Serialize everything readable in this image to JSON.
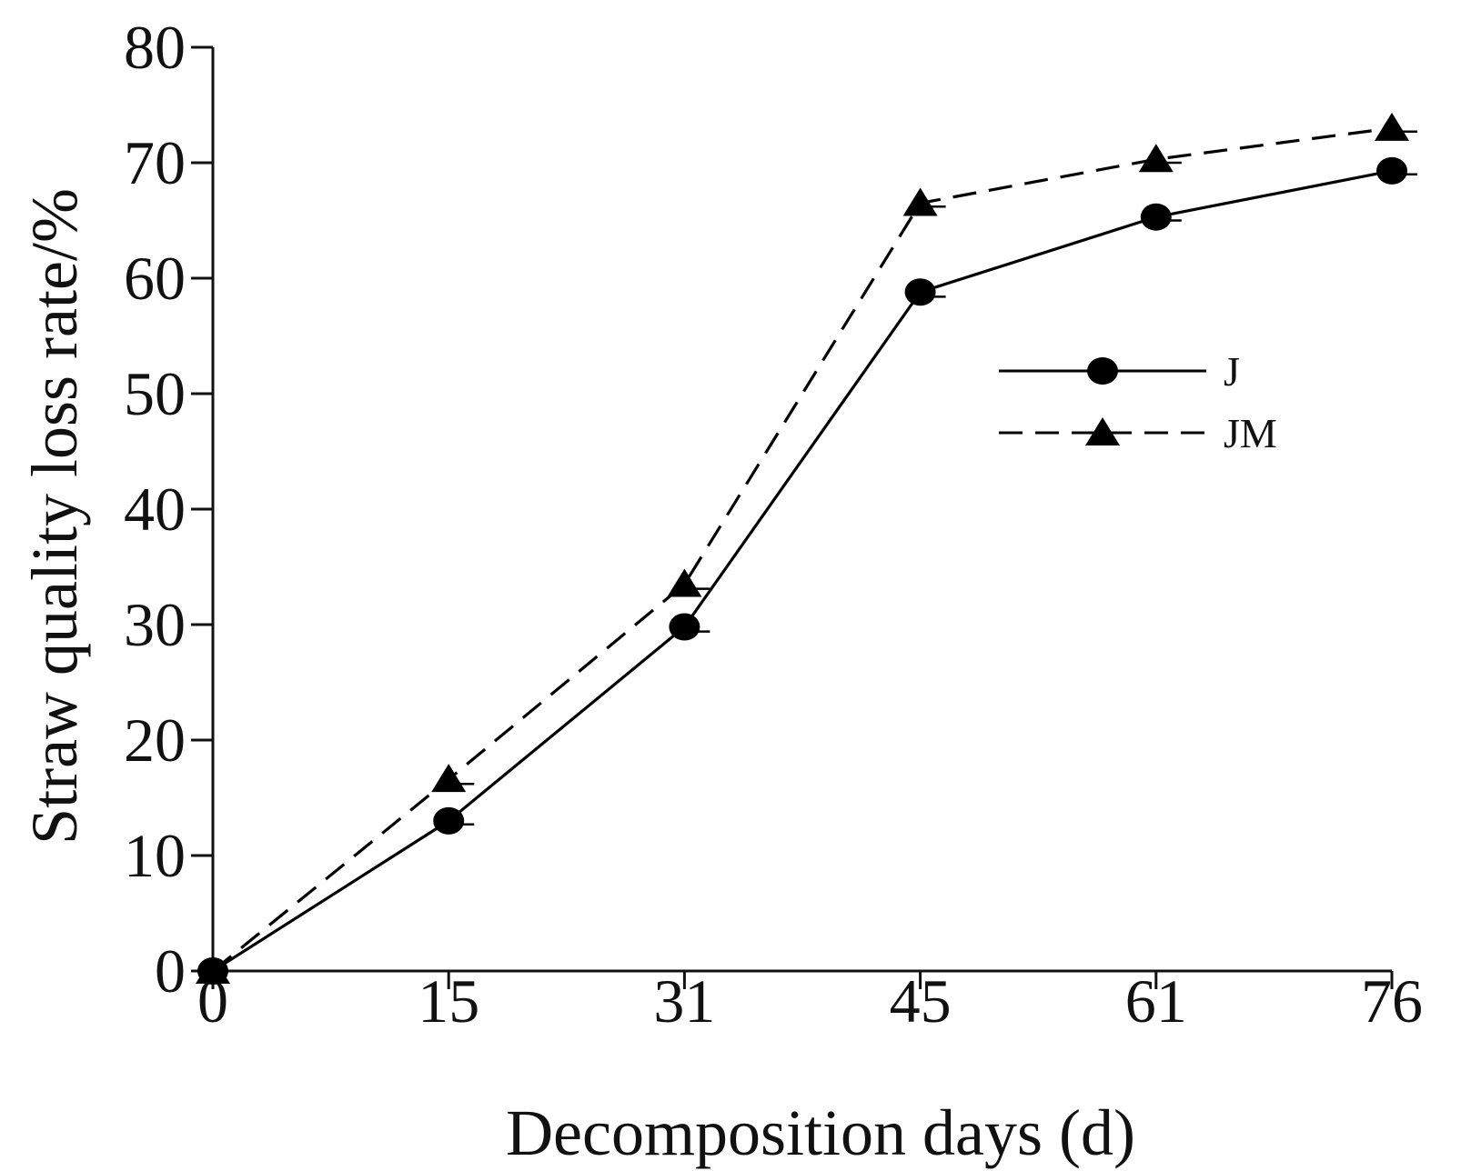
{
  "chart_data": {
    "type": "line",
    "title": "",
    "xlabel": "Decomposition days (d)",
    "ylabel": "Straw quality loss rate/%",
    "x": [
      0,
      15,
      31,
      45,
      61,
      76
    ],
    "x_ticks": [
      "0",
      "15",
      "31",
      "45",
      "61",
      "76"
    ],
    "y_ticks": [
      "0",
      "10",
      "20",
      "30",
      "40",
      "50",
      "60",
      "70",
      "80"
    ],
    "ylim": [
      0,
      80
    ],
    "grid": false,
    "legend_position": "center-right",
    "series": [
      {
        "name": "J",
        "values": [
          0,
          13.0,
          29.8,
          58.8,
          65.3,
          69.3
        ],
        "errors": [
          0,
          0.3,
          0.4,
          0.4,
          0.3,
          0.3
        ],
        "marker": "circle",
        "line_style": "solid",
        "color": "#000000"
      },
      {
        "name": "JM",
        "values": [
          0,
          16.6,
          33.5,
          66.5,
          70.3,
          73.0
        ],
        "errors": [
          0,
          0.4,
          0.4,
          0.3,
          0.3,
          0.3
        ],
        "marker": "triangle",
        "line_style": "dashed",
        "color": "#000000"
      }
    ]
  }
}
